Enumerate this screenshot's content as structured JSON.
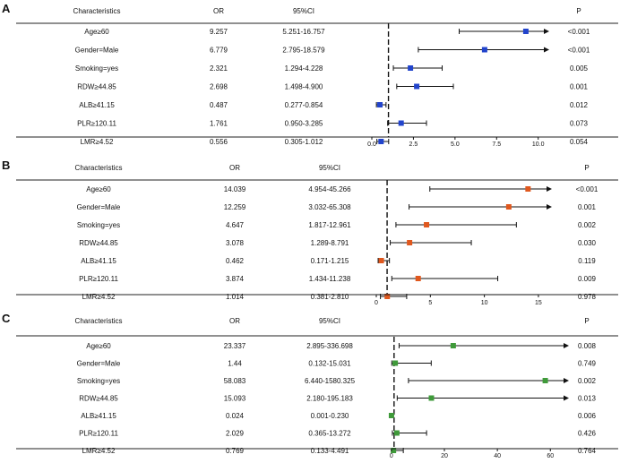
{
  "columns": {
    "characteristics": "Characteristics",
    "or": "OR",
    "ci": "95%CI",
    "p": "P"
  },
  "chart_data": [
    {
      "panel": "A",
      "type": "forest",
      "marker_color": "#2244cc",
      "reference_line": 1,
      "xlim": [
        0,
        10.5
      ],
      "ticks": [
        "0.0",
        "2.5",
        "5.0",
        "7.5",
        "10.0"
      ],
      "tick_values": [
        0,
        2.5,
        5,
        7.5,
        10
      ],
      "rows": [
        {
          "label": "Age≥60",
          "or_text": "9.257",
          "ci_text": "5.251-16.757",
          "p": "<0.001",
          "or": 9.257,
          "lo": 5.251,
          "hi": 16.757
        },
        {
          "label": "Gender=Male",
          "or_text": "6.779",
          "ci_text": "2.795-18.579",
          "p": "<0.001",
          "or": 6.779,
          "lo": 2.795,
          "hi": 18.579
        },
        {
          "label": "Smoking=yes",
          "or_text": "2.321",
          "ci_text": "1.294-4.228",
          "p": "0.005",
          "or": 2.321,
          "lo": 1.294,
          "hi": 4.228
        },
        {
          "label": "RDW≥44.85",
          "or_text": "2.698",
          "ci_text": "1.498-4.900",
          "p": "0.001",
          "or": 2.698,
          "lo": 1.498,
          "hi": 4.9
        },
        {
          "label": "ALB≥41.15",
          "or_text": "0.487",
          "ci_text": "0.277-0.854",
          "p": "0.012",
          "or": 0.487,
          "lo": 0.277,
          "hi": 0.854
        },
        {
          "label": "PLR≥120.11",
          "or_text": "1.761",
          "ci_text": "0.950-3.285",
          "p": "0.073",
          "or": 1.761,
          "lo": 0.95,
          "hi": 3.285
        },
        {
          "label": "LMR≥4.52",
          "or_text": "0.556",
          "ci_text": "0.305-1.012",
          "p": "0.054",
          "or": 0.556,
          "lo": 0.305,
          "hi": 1.012
        }
      ]
    },
    {
      "panel": "B",
      "type": "forest",
      "marker_color": "#e0581e",
      "reference_line": 1,
      "xlim": [
        0,
        16
      ],
      "ticks": [
        "0",
        "5",
        "10",
        "15"
      ],
      "tick_values": [
        0,
        5,
        10,
        15
      ],
      "rows": [
        {
          "label": "Age≥60",
          "or_text": "14.039",
          "ci_text": "4.954-45.266",
          "p": "<0.001",
          "or": 14.039,
          "lo": 4.954,
          "hi": 45.266
        },
        {
          "label": "Gender=Male",
          "or_text": "12.259",
          "ci_text": "3.032-65.308",
          "p": "0.001",
          "or": 12.259,
          "lo": 3.032,
          "hi": 65.308
        },
        {
          "label": "Smoking=yes",
          "or_text": "4.647",
          "ci_text": "1.817-12.961",
          "p": "0.002",
          "or": 4.647,
          "lo": 1.817,
          "hi": 12.961
        },
        {
          "label": "RDW≥44.85",
          "or_text": "3.078",
          "ci_text": "1.289-8.791",
          "p": "0.030",
          "or": 3.078,
          "lo": 1.289,
          "hi": 8.791
        },
        {
          "label": "ALB≥41.15",
          "or_text": "0.462",
          "ci_text": "0.171-1.215",
          "p": "0.119",
          "or": 0.462,
          "lo": 0.171,
          "hi": 1.215
        },
        {
          "label": "PLR≥120.11",
          "or_text": "3.874",
          "ci_text": "1.434-11.238",
          "p": "0.009",
          "or": 3.874,
          "lo": 1.434,
          "hi": 11.238
        },
        {
          "label": "LMR≥4.52",
          "or_text": "1.014",
          "ci_text": "0.381-2.810",
          "p": "0.978",
          "or": 1.014,
          "lo": 0.381,
          "hi": 2.81
        }
      ]
    },
    {
      "panel": "C",
      "type": "forest",
      "marker_color": "#3f9a3a",
      "reference_line": 1,
      "xlim": [
        -3,
        66
      ],
      "ticks": [
        "0",
        "20",
        "40",
        "60"
      ],
      "tick_values": [
        0,
        20,
        40,
        60
      ],
      "rows": [
        {
          "label": "Age≥60",
          "or_text": "23.337",
          "ci_text": "2.895-336.698",
          "p": "0.008",
          "or": 23.337,
          "lo": 2.895,
          "hi": 336.698
        },
        {
          "label": "Gender=Male",
          "or_text": "1.44",
          "ci_text": "0.132-15.031",
          "p": "0.749",
          "or": 1.44,
          "lo": 0.132,
          "hi": 15.031
        },
        {
          "label": "Smoking=yes",
          "or_text": "58.083",
          "ci_text": "6.440-1580.325",
          "p": "0.002",
          "or": 58.083,
          "lo": 6.44,
          "hi": 1580.325
        },
        {
          "label": "RDW≥44.85",
          "or_text": "15.093",
          "ci_text": "2.180-195.183",
          "p": "0.013",
          "or": 15.093,
          "lo": 2.18,
          "hi": 195.183
        },
        {
          "label": "ALB≥41.15",
          "or_text": "0.024",
          "ci_text": "0.001-0.230",
          "p": "0.006",
          "or": 0.024,
          "lo": 0.001,
          "hi": 0.23
        },
        {
          "label": "PLR≥120.11",
          "or_text": "2.029",
          "ci_text": "0.365-13.272",
          "p": "0.426",
          "or": 2.029,
          "lo": 0.365,
          "hi": 13.272
        },
        {
          "label": "LMR≥4.52",
          "or_text": "0.769",
          "ci_text": "0.133-4.491",
          "p": "0.764",
          "or": 0.769,
          "lo": 0.133,
          "hi": 4.491
        }
      ]
    }
  ]
}
